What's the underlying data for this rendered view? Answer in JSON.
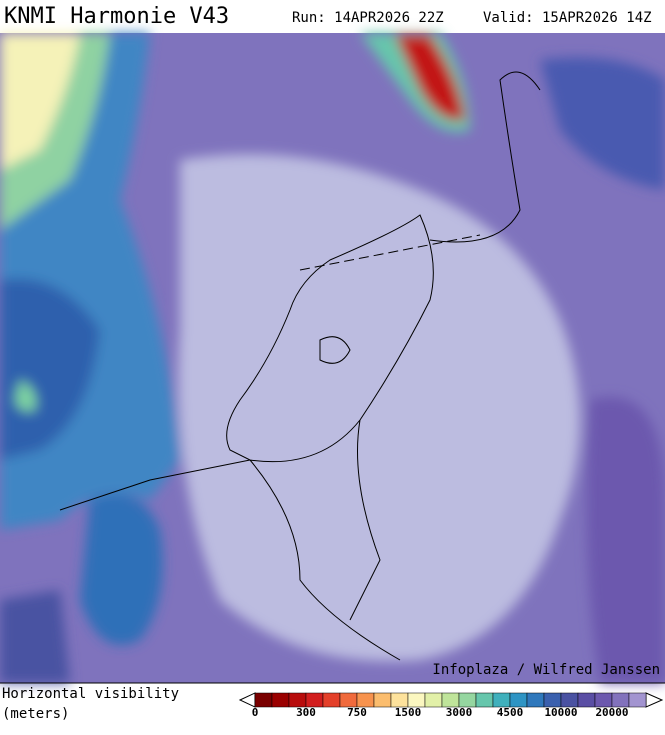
{
  "header": {
    "title": "KNMI Harmonie V43",
    "run": "Run: 14APR2026 22Z",
    "valid": "Valid: 15APR2026 14Z"
  },
  "credit": "Infoplaza / Wilfred Janssen",
  "legend": {
    "label_line1": "Horizontal visibility",
    "label_line2": "(meters)",
    "colors": [
      "#7a0000",
      "#9a0000",
      "#b80c0c",
      "#d21e1e",
      "#e4402a",
      "#f06a3c",
      "#f7934e",
      "#fbbd6e",
      "#fde29c",
      "#fbf7c0",
      "#e2f0a8",
      "#bfe49a",
      "#95d6a0",
      "#66c6ac",
      "#3fb0bc",
      "#2e94c4",
      "#2f78bc",
      "#3a60ae",
      "#4a52a2",
      "#5a4ea4",
      "#6c58ae",
      "#8272bc",
      "#a294d0"
    ],
    "ticks": [
      0,
      300,
      750,
      1500,
      3000,
      4500,
      10000,
      20000
    ]
  }
}
